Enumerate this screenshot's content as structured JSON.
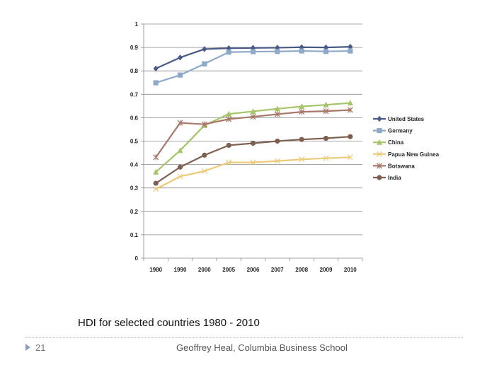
{
  "slide": {
    "caption": "HDI for selected countries 1980 - 2010",
    "number": "21",
    "footer": "Geoffrey Heal,  Columbia Business School"
  },
  "chart_data": {
    "type": "line",
    "categories": [
      "1980",
      "1990",
      "2000",
      "2005",
      "2006",
      "2007",
      "2008",
      "2009",
      "2010"
    ],
    "ylim": [
      0,
      1
    ],
    "yticks": [
      "0",
      "0.1",
      "0.2",
      "0.3",
      "0.4",
      "0.5",
      "0.6",
      "0.7",
      "0.8",
      "0.9",
      "1"
    ],
    "grid": true,
    "legend_position": "right",
    "series": [
      {
        "name": "United States",
        "color": "#4a5a86",
        "marker": "diamond",
        "values": [
          0.81,
          0.857,
          0.893,
          0.897,
          0.898,
          0.899,
          0.901,
          0.9,
          0.903
        ]
      },
      {
        "name": "Germany",
        "color": "#8eaac8",
        "marker": "square",
        "values": [
          0.749,
          0.782,
          0.83,
          0.88,
          0.882,
          0.883,
          0.885,
          0.883,
          0.885
        ]
      },
      {
        "name": "China",
        "color": "#a6c468",
        "marker": "triangle",
        "values": [
          0.368,
          0.46,
          0.567,
          0.616,
          0.627,
          0.638,
          0.648,
          0.655,
          0.663
        ]
      },
      {
        "name": "Papua New Guinea",
        "color": "#ecca78",
        "marker": "star",
        "values": [
          0.295,
          0.349,
          0.372,
          0.409,
          0.409,
          0.415,
          0.422,
          0.427,
          0.431
        ]
      },
      {
        "name": "Botswana",
        "color": "#a8786a",
        "marker": "x",
        "values": [
          0.431,
          0.578,
          0.572,
          0.594,
          0.604,
          0.615,
          0.625,
          0.628,
          0.633
        ]
      },
      {
        "name": "India",
        "color": "#7d6050",
        "marker": "circle",
        "values": [
          0.32,
          0.389,
          0.44,
          0.482,
          0.491,
          0.5,
          0.507,
          0.512,
          0.519
        ]
      }
    ]
  }
}
